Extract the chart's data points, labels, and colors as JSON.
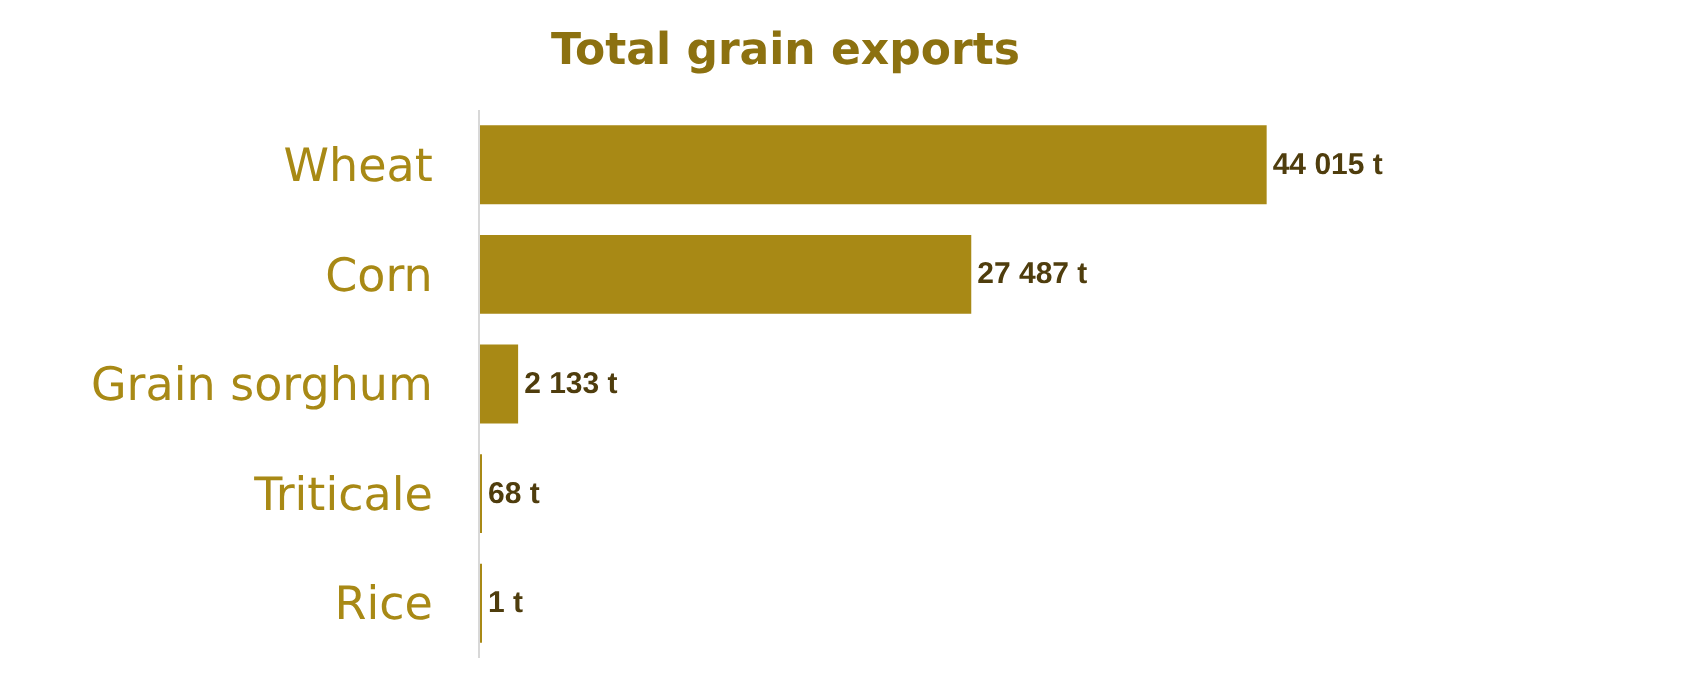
{
  "chart_data": {
    "type": "bar",
    "orientation": "horizontal",
    "title": "Total grain exports",
    "categories": [
      "Wheat",
      "Corn",
      "Grain sorghum",
      "Triticale",
      "Rice"
    ],
    "values": [
      44015,
      27487,
      2133,
      68,
      1
    ],
    "value_labels": [
      "44 015 t",
      "27 487 t",
      "2 133 t",
      "68 t",
      "1 t"
    ],
    "color": "#a88915",
    "tick_labels": "y"
  }
}
